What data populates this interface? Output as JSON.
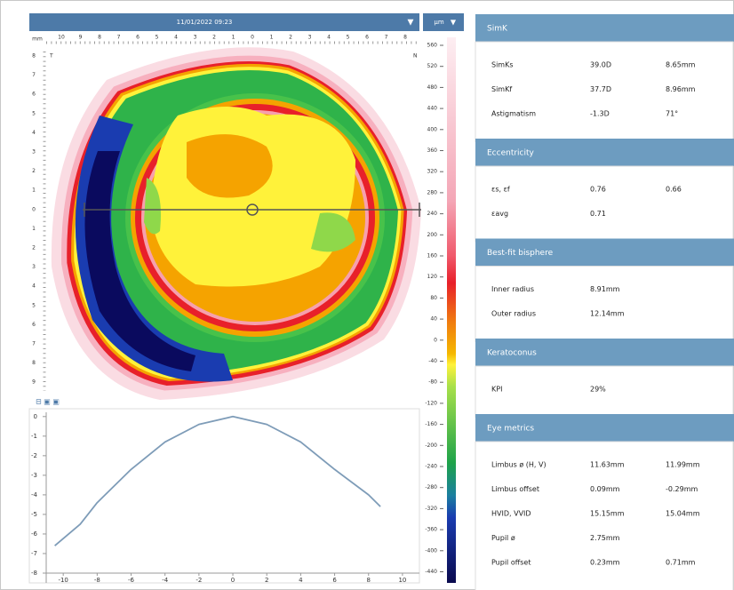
{
  "map": {
    "date": "11/01/2022 09:23",
    "unit": "µm",
    "x_unit": "mm",
    "x_labels": [
      10,
      9,
      8,
      7,
      6,
      5,
      4,
      3,
      2,
      1,
      0,
      1,
      2,
      3,
      4,
      5,
      6,
      7,
      8
    ],
    "y_labels": [
      8,
      7,
      6,
      5,
      4,
      3,
      2,
      1,
      0,
      1,
      2,
      3,
      4,
      5,
      6,
      7,
      8,
      9
    ],
    "left_marker": "T",
    "right_marker": "N"
  },
  "scale": {
    "labels": [
      560,
      520,
      480,
      440,
      400,
      360,
      320,
      280,
      240,
      200,
      160,
      120,
      80,
      40,
      0,
      -40,
      -80,
      -120,
      -160,
      -200,
      -240,
      -280,
      -320,
      -360,
      -400,
      -440
    ]
  },
  "chart_data": {
    "type": "line",
    "x": [
      -10.5,
      -9,
      -8,
      -6,
      -4,
      -2,
      0,
      2,
      4,
      6,
      8,
      8.7
    ],
    "values": [
      -6.6,
      -5.5,
      -4.4,
      -2.7,
      -1.3,
      -0.4,
      0,
      -0.4,
      -1.3,
      -2.7,
      -4.0,
      -4.6
    ],
    "color": "#7e9cb8",
    "xlim": [
      -12,
      11
    ],
    "ylim": [
      -8.5,
      0.4
    ],
    "xticks": [
      -10,
      -8,
      -6,
      -4,
      -2,
      0,
      2,
      4,
      6,
      8,
      10
    ],
    "yticks": [
      0,
      -1,
      -2,
      -3,
      -4,
      -5,
      -6,
      -7,
      -8
    ],
    "grid": false
  },
  "panel": {
    "sections": [
      {
        "title": "SimK",
        "rows": [
          [
            "SimKs",
            "39.0D",
            "8.65mm"
          ],
          [
            "SimKf",
            "37.7D",
            "8.96mm"
          ],
          [
            "Astigmatism",
            "-1.3D",
            "71°"
          ]
        ]
      },
      {
        "title": "Eccentricity",
        "rows": [
          [
            "εs, εf",
            "0.76",
            "0.66"
          ],
          [
            "εavg",
            "0.71"
          ]
        ]
      },
      {
        "title": "Best-fit bisphere",
        "rows": [
          [
            "Inner radius",
            "8.91mm"
          ],
          [
            "Outer radius",
            "12.14mm"
          ]
        ]
      },
      {
        "title": "Keratoconus",
        "rows": [
          [
            "KPI",
            "29%"
          ]
        ]
      },
      {
        "title": "Eye metrics",
        "rows": [
          [
            "Limbus ø (H, V)",
            "11.63mm",
            "11.99mm"
          ],
          [
            "Limbus offset",
            "0.09mm",
            "-0.29mm"
          ],
          [
            "HVID, VVID",
            "15.15mm",
            "15.04mm"
          ],
          [
            "Pupil ø",
            "2.75mm"
          ],
          [
            "Pupil offset",
            "0.23mm",
            "0.71mm"
          ]
        ]
      }
    ]
  }
}
